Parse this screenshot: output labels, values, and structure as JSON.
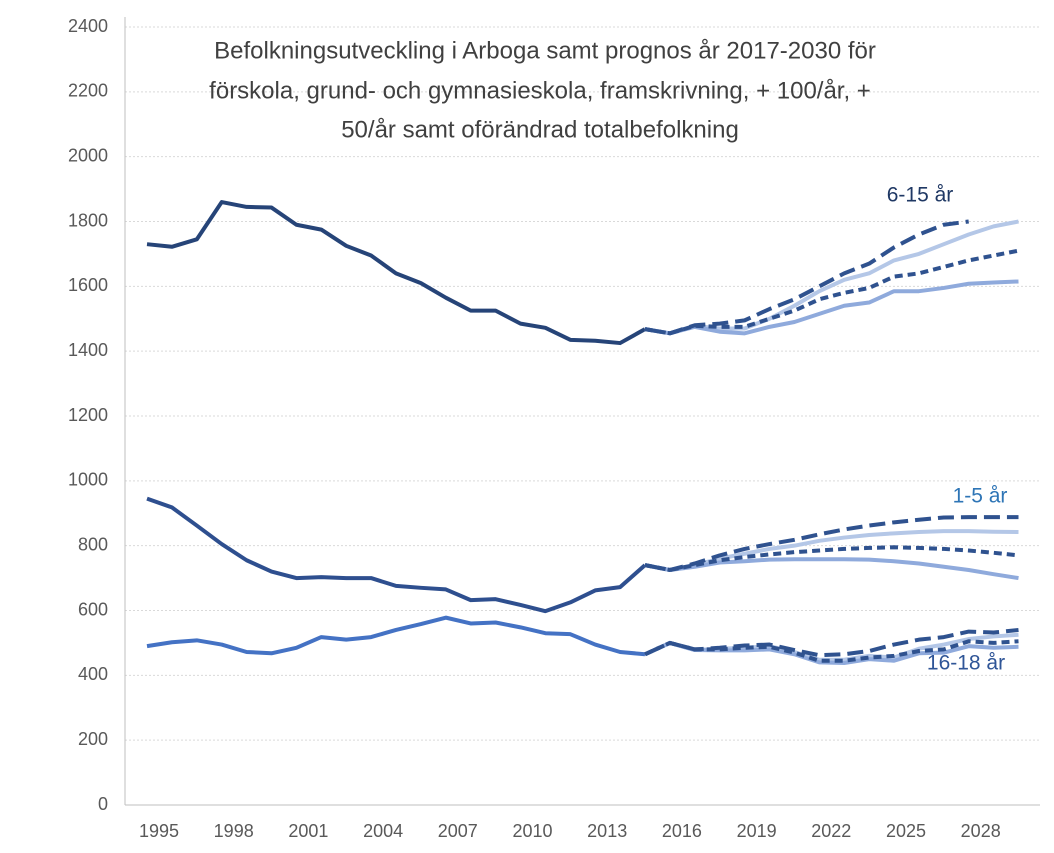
{
  "chart_data": {
    "type": "line",
    "title": [
      "Befolkningsutveckling i Arboga samt prognos år 2017-2030 för",
      "förskola, grund- och gymnasieskola, framskrivning, + 100/år,  +",
      "50/år  samt oförändrad totalbefolkning"
    ],
    "categories": [
      "1995",
      null,
      null,
      "1998",
      null,
      null,
      "2001",
      null,
      null,
      "2004",
      null,
      null,
      "2007",
      null,
      null,
      "2010",
      null,
      null,
      "2013",
      null,
      null,
      "2016",
      null,
      null,
      "2019",
      null,
      null,
      "2022",
      null,
      null,
      "2025",
      null,
      null,
      "2028",
      null,
      null
    ],
    "ylim": [
      0,
      2400
    ],
    "yticks": [
      0,
      200,
      400,
      600,
      800,
      1000,
      1200,
      1400,
      1600,
      1800,
      2000,
      2200,
      2400
    ],
    "grid": true,
    "annotations": [
      {
        "text": "6-15 år",
        "color": "#1f3864"
      },
      {
        "text": "1-5 år",
        "color": "#2e75b6"
      },
      {
        "text": "16-18 år",
        "color": "#2f5597"
      }
    ],
    "series": [
      {
        "color": "#264478",
        "dash": "solid",
        "values": [
          1730,
          1722,
          1745,
          1860,
          1845,
          1843,
          1790,
          1775,
          1725,
          1695,
          1640,
          1610,
          1565,
          1525,
          1525,
          1485,
          1472,
          1435,
          1432,
          1425,
          1468,
          null,
          null,
          null,
          null,
          null,
          null,
          null,
          null,
          null,
          null,
          null,
          null,
          null,
          null,
          null
        ]
      },
      {
        "color": "#2e4f8f",
        "dash": "solid",
        "values": [
          945,
          918,
          862,
          805,
          755,
          720,
          700,
          703,
          700,
          700,
          676,
          670,
          665,
          632,
          635,
          617,
          598,
          625,
          662,
          672,
          740,
          null,
          null,
          null,
          null,
          null,
          null,
          null,
          null,
          null,
          null,
          null,
          null,
          null,
          null,
          null
        ]
      },
      {
        "color": "#4472c4",
        "dash": "solid",
        "values": [
          490,
          502,
          508,
          495,
          472,
          468,
          485,
          518,
          510,
          518,
          540,
          558,
          578,
          560,
          563,
          548,
          530,
          527,
          495,
          472,
          465,
          null,
          null,
          null,
          null,
          null,
          null,
          null,
          null,
          null,
          null,
          null,
          null,
          null,
          null,
          null
        ]
      },
      {
        "color": "#b4c7e7",
        "dash": "solid",
        "values": [
          null,
          null,
          null,
          null,
          null,
          null,
          null,
          null,
          null,
          null,
          null,
          null,
          null,
          null,
          null,
          null,
          null,
          null,
          null,
          null,
          1468,
          1455,
          1478,
          1470,
          1470,
          1500,
          1540,
          1585,
          1620,
          1640,
          1680,
          1700,
          1730,
          1760,
          1785,
          1800
        ]
      },
      {
        "color": "#8faadc",
        "dash": "solid",
        "values": [
          null,
          null,
          null,
          null,
          null,
          null,
          null,
          null,
          null,
          null,
          null,
          null,
          null,
          null,
          null,
          null,
          null,
          null,
          null,
          null,
          1468,
          1455,
          1475,
          1460,
          1455,
          1475,
          1490,
          1515,
          1540,
          1550,
          1585,
          1585,
          1595,
          1608,
          1612,
          1615
        ]
      },
      {
        "color": "#2f528f",
        "dash": "short",
        "values": [
          null,
          null,
          null,
          null,
          null,
          null,
          null,
          null,
          null,
          null,
          null,
          null,
          null,
          null,
          null,
          null,
          null,
          null,
          null,
          null,
          1468,
          1455,
          1478,
          1475,
          1475,
          1500,
          1525,
          1560,
          1580,
          1595,
          1630,
          1640,
          1660,
          1680,
          1695,
          1710
        ]
      },
      {
        "color": "#2f528f",
        "dash": "long",
        "values": [
          null,
          null,
          null,
          null,
          null,
          null,
          null,
          null,
          null,
          null,
          null,
          null,
          null,
          null,
          null,
          null,
          null,
          null,
          null,
          null,
          1468,
          1455,
          1480,
          1485,
          1495,
          1530,
          1560,
          1600,
          1640,
          1670,
          1720,
          1760,
          1790,
          1800,
          null,
          null
        ]
      },
      {
        "color": "#b4c7e7",
        "dash": "solid",
        "values": [
          null,
          null,
          null,
          null,
          null,
          null,
          null,
          null,
          null,
          null,
          null,
          null,
          null,
          null,
          null,
          null,
          null,
          null,
          null,
          null,
          740,
          725,
          740,
          760,
          775,
          790,
          800,
          815,
          825,
          833,
          838,
          842,
          845,
          845,
          843,
          842
        ]
      },
      {
        "color": "#8faadc",
        "dash": "solid",
        "values": [
          null,
          null,
          null,
          null,
          null,
          null,
          null,
          null,
          null,
          null,
          null,
          null,
          null,
          null,
          null,
          null,
          null,
          null,
          null,
          null,
          740,
          725,
          735,
          748,
          752,
          757,
          758,
          758,
          758,
          757,
          752,
          745,
          735,
          725,
          712,
          700
        ]
      },
      {
        "color": "#2f528f",
        "dash": "short",
        "values": [
          null,
          null,
          null,
          null,
          null,
          null,
          null,
          null,
          null,
          null,
          null,
          null,
          null,
          null,
          null,
          null,
          null,
          null,
          null,
          null,
          740,
          725,
          740,
          755,
          765,
          773,
          780,
          785,
          790,
          793,
          795,
          793,
          790,
          785,
          778,
          770
        ]
      },
      {
        "color": "#2f528f",
        "dash": "long",
        "values": [
          null,
          null,
          null,
          null,
          null,
          null,
          null,
          null,
          null,
          null,
          null,
          null,
          null,
          null,
          null,
          null,
          null,
          null,
          null,
          null,
          740,
          725,
          745,
          770,
          790,
          805,
          818,
          835,
          850,
          862,
          872,
          880,
          887,
          888,
          888,
          888
        ]
      },
      {
        "color": "#b4c7e7",
        "dash": "solid",
        "values": [
          null,
          null,
          null,
          null,
          null,
          null,
          null,
          null,
          null,
          null,
          null,
          null,
          null,
          null,
          null,
          null,
          null,
          null,
          null,
          null,
          465,
          500,
          478,
          482,
          485,
          490,
          472,
          448,
          448,
          460,
          455,
          482,
          495,
          512,
          520,
          525
        ]
      },
      {
        "color": "#8faadc",
        "dash": "solid",
        "values": [
          null,
          null,
          null,
          null,
          null,
          null,
          null,
          null,
          null,
          null,
          null,
          null,
          null,
          null,
          null,
          null,
          null,
          null,
          null,
          null,
          465,
          500,
          478,
          477,
          477,
          480,
          465,
          440,
          438,
          450,
          445,
          468,
          470,
          490,
          485,
          488
        ]
      },
      {
        "color": "#2f528f",
        "dash": "short",
        "values": [
          null,
          null,
          null,
          null,
          null,
          null,
          null,
          null,
          null,
          null,
          null,
          null,
          null,
          null,
          null,
          null,
          null,
          null,
          null,
          null,
          465,
          500,
          480,
          480,
          485,
          488,
          470,
          445,
          445,
          455,
          460,
          475,
          480,
          505,
          500,
          505
        ]
      },
      {
        "color": "#2f528f",
        "dash": "long",
        "values": [
          null,
          null,
          null,
          null,
          null,
          null,
          null,
          null,
          null,
          null,
          null,
          null,
          null,
          null,
          null,
          null,
          null,
          null,
          null,
          null,
          465,
          500,
          480,
          485,
          492,
          495,
          478,
          462,
          465,
          475,
          495,
          510,
          518,
          535,
          532,
          540
        ]
      }
    ]
  }
}
